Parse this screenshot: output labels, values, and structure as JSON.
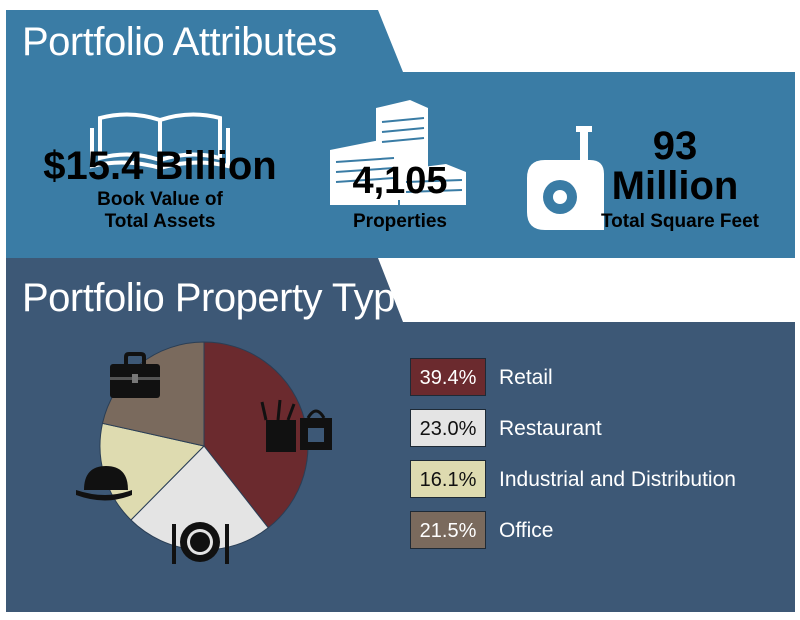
{
  "colors": {
    "top_panel": "#3a7ca5",
    "bottom_panel": "#3d5876",
    "retail": "#6b2a2e",
    "restaurant": "#e4e4e4",
    "industrial": "#dedbb0",
    "office": "#7a6a5d"
  },
  "attributes": {
    "title": "Portfolio Attributes",
    "assets_value": "$15.4 Billion",
    "assets_label_line1": "Book Value of",
    "assets_label_line2": "Total Assets",
    "properties_value": "4,105",
    "properties_label": "Properties",
    "sqft_value_line1": "93",
    "sqft_value_line2": "Million",
    "sqft_label": "Total Square Feet"
  },
  "property_types": {
    "title": "Portfolio Property Types"
  },
  "chart_data": {
    "type": "pie",
    "title": "Portfolio Property Types",
    "slices": [
      {
        "name": "Retail",
        "value": 39.4,
        "label": "39.4%",
        "color": "#6b2a2e",
        "icon": "shopping-bags-icon"
      },
      {
        "name": "Restaurant",
        "value": 23.0,
        "label": "23.0%",
        "color": "#e4e4e4",
        "icon": "plate-fork-knife-icon"
      },
      {
        "name": "Industrial and Distribution",
        "value": 16.1,
        "label": "16.1%",
        "color": "#dedbb0",
        "icon": "hard-hat-icon"
      },
      {
        "name": "Office",
        "value": 21.5,
        "label": "21.5%",
        "color": "#7a6a5d",
        "icon": "briefcase-icon"
      }
    ]
  }
}
